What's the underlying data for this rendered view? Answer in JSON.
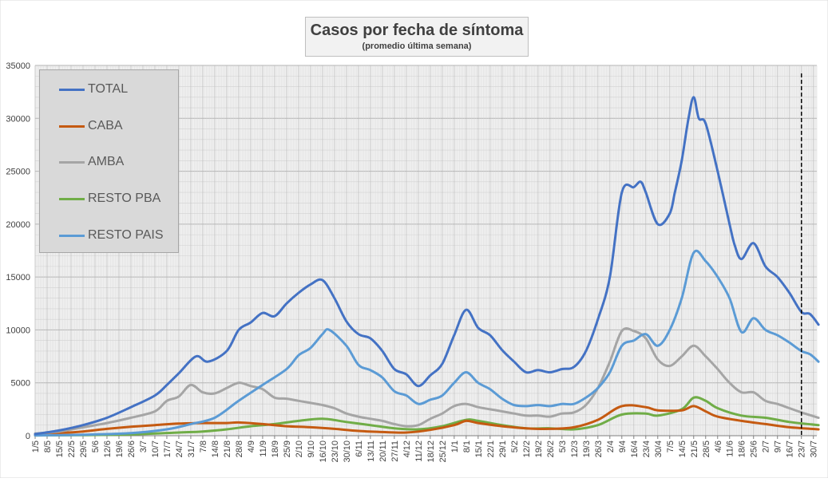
{
  "title": "Casos por fecha de síntoma",
  "subtitle": "(promedio última semana)",
  "chart_data": {
    "type": "line",
    "title": "Casos por fecha de síntoma",
    "subtitle": "(promedio última semana)",
    "xlabel": "",
    "ylabel": "",
    "ylim": [
      0,
      35000
    ],
    "yticks": [
      0,
      5000,
      10000,
      15000,
      20000,
      25000,
      30000,
      35000
    ],
    "grid": true,
    "legend_position": "top-left",
    "x_range": [
      "1/5/2020",
      "1/8/2021"
    ],
    "xtick_labels": [
      "1/5",
      "8/5",
      "15/5",
      "22/5",
      "29/5",
      "5/6",
      "12/6",
      "19/6",
      "26/6",
      "3/7",
      "10/7",
      "17/7",
      "24/7",
      "31/7",
      "7/8",
      "14/8",
      "21/8",
      "28/8",
      "4/9",
      "11/9",
      "18/9",
      "25/9",
      "2/10",
      "9/10",
      "16/10",
      "23/10",
      "30/10",
      "6/11",
      "13/11",
      "20/11",
      "27/11",
      "4/12",
      "11/12",
      "18/12",
      "25/12",
      "1/1",
      "8/1",
      "15/1",
      "22/1",
      "29/1",
      "5/2",
      "12/2",
      "19/2",
      "26/2",
      "5/3",
      "12/3",
      "19/3",
      "26/3",
      "2/4",
      "9/4",
      "16/4",
      "23/4",
      "30/4",
      "7/5",
      "14/5",
      "21/5",
      "28/5",
      "4/6",
      "11/6",
      "18/6",
      "25/6",
      "2/7",
      "9/7",
      "16/7",
      "23/7",
      "30/7"
    ],
    "vertical_marker": "23/7/2021",
    "series": [
      {
        "name": "TOTAL",
        "color": "#4472c4",
        "points": [
          [
            "1/5/2020",
            150
          ],
          [
            "15/5/2020",
            500
          ],
          [
            "29/5/2020",
            1000
          ],
          [
            "12/6/2020",
            1700
          ],
          [
            "26/6/2020",
            2700
          ],
          [
            "10/7/2020",
            3800
          ],
          [
            "17/7/2020",
            4800
          ],
          [
            "24/7/2020",
            5900
          ],
          [
            "3/8/2020",
            7500
          ],
          [
            "10/8/2020",
            7000
          ],
          [
            "21/8/2020",
            8000
          ],
          [
            "28/8/2020",
            10000
          ],
          [
            "4/9/2020",
            10700
          ],
          [
            "11/9/2020",
            11600
          ],
          [
            "18/9/2020",
            11300
          ],
          [
            "25/9/2020",
            12500
          ],
          [
            "2/10/2020",
            13500
          ],
          [
            "9/10/2020",
            14300
          ],
          [
            "16/10/2020",
            14700
          ],
          [
            "23/10/2020",
            13000
          ],
          [
            "30/10/2020",
            10800
          ],
          [
            "6/11/2020",
            9600
          ],
          [
            "13/11/2020",
            9200
          ],
          [
            "20/11/2020",
            8000
          ],
          [
            "27/11/2020",
            6300
          ],
          [
            "4/12/2020",
            5800
          ],
          [
            "11/12/2020",
            4700
          ],
          [
            "18/12/2020",
            5700
          ],
          [
            "25/12/2020",
            6800
          ],
          [
            "1/1/2021",
            9500
          ],
          [
            "8/1/2021",
            11900
          ],
          [
            "15/1/2021",
            10200
          ],
          [
            "22/1/2021",
            9500
          ],
          [
            "29/1/2021",
            8100
          ],
          [
            "5/2/2021",
            7000
          ],
          [
            "12/2/2021",
            6000
          ],
          [
            "19/2/2021",
            6200
          ],
          [
            "26/2/2021",
            6000
          ],
          [
            "5/3/2021",
            6300
          ],
          [
            "12/3/2021",
            6500
          ],
          [
            "19/3/2021",
            8000
          ],
          [
            "26/3/2021",
            11000
          ],
          [
            "2/4/2021",
            15000
          ],
          [
            "9/4/2021",
            23000
          ],
          [
            "16/4/2021",
            23500
          ],
          [
            "20/4/2021",
            24000
          ],
          [
            "23/4/2021",
            23000
          ],
          [
            "30/4/2021",
            20000
          ],
          [
            "7/5/2021",
            21000
          ],
          [
            "10/5/2021",
            23000
          ],
          [
            "14/5/2021",
            26000
          ],
          [
            "18/5/2021",
            30000
          ],
          [
            "21/5/2021",
            32000
          ],
          [
            "24/5/2021",
            30000
          ],
          [
            "28/5/2021",
            29500
          ],
          [
            "4/6/2021",
            25000
          ],
          [
            "11/6/2021",
            20000
          ],
          [
            "14/6/2021",
            18000
          ],
          [
            "18/6/2021",
            16700
          ],
          [
            "25/6/2021",
            18200
          ],
          [
            "2/7/2021",
            16000
          ],
          [
            "9/7/2021",
            15000
          ],
          [
            "16/7/2021",
            13500
          ],
          [
            "23/7/2021",
            11700
          ],
          [
            "28/7/2021",
            11500
          ],
          [
            "2/8/2021",
            10500
          ]
        ]
      },
      {
        "name": "CABA",
        "color": "#c55a11",
        "points": [
          [
            "1/5/2020",
            100
          ],
          [
            "15/5/2020",
            250
          ],
          [
            "29/5/2020",
            400
          ],
          [
            "12/6/2020",
            650
          ],
          [
            "26/6/2020",
            850
          ],
          [
            "10/7/2020",
            1000
          ],
          [
            "24/7/2020",
            1150
          ],
          [
            "7/8/2020",
            1200
          ],
          [
            "21/8/2020",
            1200
          ],
          [
            "28/8/2020",
            1250
          ],
          [
            "11/9/2020",
            1100
          ],
          [
            "25/9/2020",
            900
          ],
          [
            "9/10/2020",
            800
          ],
          [
            "23/10/2020",
            650
          ],
          [
            "6/11/2020",
            450
          ],
          [
            "20/11/2020",
            350
          ],
          [
            "4/12/2020",
            300
          ],
          [
            "18/12/2020",
            550
          ],
          [
            "1/1/2021",
            1000
          ],
          [
            "8/1/2021",
            1400
          ],
          [
            "15/1/2021",
            1200
          ],
          [
            "29/1/2021",
            900
          ],
          [
            "12/2/2021",
            700
          ],
          [
            "26/2/2021",
            650
          ],
          [
            "12/3/2021",
            800
          ],
          [
            "26/3/2021",
            1500
          ],
          [
            "9/4/2021",
            2800
          ],
          [
            "23/4/2021",
            2700
          ],
          [
            "30/4/2021",
            2400
          ],
          [
            "14/5/2021",
            2400
          ],
          [
            "21/5/2021",
            2800
          ],
          [
            "28/5/2021",
            2300
          ],
          [
            "4/6/2021",
            1800
          ],
          [
            "18/6/2021",
            1400
          ],
          [
            "2/7/2021",
            1100
          ],
          [
            "16/7/2021",
            800
          ],
          [
            "2/8/2021",
            600
          ]
        ]
      },
      {
        "name": "AMBA",
        "color": "#a5a5a5",
        "points": [
          [
            "1/5/2020",
            200
          ],
          [
            "15/5/2020",
            400
          ],
          [
            "29/5/2020",
            800
          ],
          [
            "12/6/2020",
            1200
          ],
          [
            "26/6/2020",
            1700
          ],
          [
            "10/7/2020",
            2300
          ],
          [
            "17/7/2020",
            3300
          ],
          [
            "24/7/2020",
            3700
          ],
          [
            "31/7/2020",
            4800
          ],
          [
            "7/8/2020",
            4100
          ],
          [
            "14/8/2020",
            4000
          ],
          [
            "21/8/2020",
            4500
          ],
          [
            "28/8/2020",
            5000
          ],
          [
            "4/9/2020",
            4700
          ],
          [
            "11/9/2020",
            4400
          ],
          [
            "18/9/2020",
            3600
          ],
          [
            "25/9/2020",
            3500
          ],
          [
            "2/10/2020",
            3300
          ],
          [
            "9/10/2020",
            3100
          ],
          [
            "16/10/2020",
            2900
          ],
          [
            "23/10/2020",
            2600
          ],
          [
            "30/10/2020",
            2100
          ],
          [
            "6/11/2020",
            1800
          ],
          [
            "13/11/2020",
            1600
          ],
          [
            "20/11/2020",
            1400
          ],
          [
            "27/11/2020",
            1100
          ],
          [
            "4/12/2020",
            900
          ],
          [
            "11/12/2020",
            1000
          ],
          [
            "18/12/2020",
            1600
          ],
          [
            "25/12/2020",
            2100
          ],
          [
            "1/1/2021",
            2800
          ],
          [
            "8/1/2021",
            3000
          ],
          [
            "15/1/2021",
            2700
          ],
          [
            "22/1/2021",
            2500
          ],
          [
            "29/1/2021",
            2300
          ],
          [
            "5/2/2021",
            2100
          ],
          [
            "12/2/2021",
            1900
          ],
          [
            "19/2/2021",
            1900
          ],
          [
            "26/2/2021",
            1800
          ],
          [
            "5/3/2021",
            2100
          ],
          [
            "12/3/2021",
            2200
          ],
          [
            "19/3/2021",
            2900
          ],
          [
            "26/3/2021",
            4500
          ],
          [
            "2/4/2021",
            7000
          ],
          [
            "9/4/2021",
            9900
          ],
          [
            "16/4/2021",
            9900
          ],
          [
            "23/4/2021",
            9200
          ],
          [
            "30/4/2021",
            7200
          ],
          [
            "7/5/2021",
            6600
          ],
          [
            "14/5/2021",
            7500
          ],
          [
            "21/5/2021",
            8500
          ],
          [
            "28/5/2021",
            7500
          ],
          [
            "4/6/2021",
            6300
          ],
          [
            "11/6/2021",
            5000
          ],
          [
            "18/6/2021",
            4100
          ],
          [
            "25/6/2021",
            4100
          ],
          [
            "2/7/2021",
            3300
          ],
          [
            "9/7/2021",
            3000
          ],
          [
            "16/7/2021",
            2600
          ],
          [
            "23/7/2021",
            2200
          ],
          [
            "2/8/2021",
            1700
          ]
        ]
      },
      {
        "name": "RESTO PBA",
        "color": "#70ad47",
        "points": [
          [
            "1/5/2020",
            30
          ],
          [
            "29/5/2020",
            60
          ],
          [
            "26/6/2020",
            120
          ],
          [
            "24/7/2020",
            300
          ],
          [
            "7/8/2020",
            400
          ],
          [
            "21/8/2020",
            600
          ],
          [
            "4/9/2020",
            900
          ],
          [
            "18/9/2020",
            1100
          ],
          [
            "2/10/2020",
            1400
          ],
          [
            "16/10/2020",
            1600
          ],
          [
            "30/10/2020",
            1300
          ],
          [
            "13/11/2020",
            1000
          ],
          [
            "27/11/2020",
            700
          ],
          [
            "11/12/2020",
            600
          ],
          [
            "25/12/2020",
            900
          ],
          [
            "8/1/2021",
            1500
          ],
          [
            "15/1/2021",
            1400
          ],
          [
            "29/1/2021",
            1000
          ],
          [
            "12/2/2021",
            700
          ],
          [
            "26/2/2021",
            700
          ],
          [
            "12/3/2021",
            600
          ],
          [
            "26/3/2021",
            1000
          ],
          [
            "9/4/2021",
            2000
          ],
          [
            "23/4/2021",
            2100
          ],
          [
            "30/4/2021",
            1900
          ],
          [
            "14/5/2021",
            2500
          ],
          [
            "21/5/2021",
            3600
          ],
          [
            "28/5/2021",
            3300
          ],
          [
            "4/6/2021",
            2600
          ],
          [
            "18/6/2021",
            1900
          ],
          [
            "2/7/2021",
            1700
          ],
          [
            "16/7/2021",
            1300
          ],
          [
            "2/8/2021",
            1000
          ]
        ]
      },
      {
        "name": "RESTO PAIS",
        "color": "#5b9bd5",
        "points": [
          [
            "1/5/2020",
            30
          ],
          [
            "29/5/2020",
            100
          ],
          [
            "26/6/2020",
            250
          ],
          [
            "17/7/2020",
            600
          ],
          [
            "31/7/2020",
            1100
          ],
          [
            "14/8/2020",
            1700
          ],
          [
            "28/8/2020",
            3300
          ],
          [
            "11/9/2020",
            4800
          ],
          [
            "25/9/2020",
            6300
          ],
          [
            "2/10/2020",
            7600
          ],
          [
            "9/10/2020",
            8300
          ],
          [
            "16/10/2020",
            9600
          ],
          [
            "20/10/2020",
            10000
          ],
          [
            "30/10/2020",
            8500
          ],
          [
            "6/11/2020",
            6700
          ],
          [
            "13/11/2020",
            6200
          ],
          [
            "20/11/2020",
            5500
          ],
          [
            "27/11/2020",
            4200
          ],
          [
            "4/12/2020",
            3800
          ],
          [
            "11/12/2020",
            3000
          ],
          [
            "18/12/2020",
            3400
          ],
          [
            "25/12/2020",
            3800
          ],
          [
            "1/1/2021",
            5000
          ],
          [
            "8/1/2021",
            6000
          ],
          [
            "15/1/2021",
            5000
          ],
          [
            "22/1/2021",
            4400
          ],
          [
            "29/1/2021",
            3500
          ],
          [
            "5/2/2021",
            2900
          ],
          [
            "12/2/2021",
            2800
          ],
          [
            "19/2/2021",
            2900
          ],
          [
            "26/2/2021",
            2800
          ],
          [
            "5/3/2021",
            3000
          ],
          [
            "12/3/2021",
            3000
          ],
          [
            "19/3/2021",
            3600
          ],
          [
            "26/3/2021",
            4500
          ],
          [
            "2/4/2021",
            6000
          ],
          [
            "9/4/2021",
            8500
          ],
          [
            "16/4/2021",
            9000
          ],
          [
            "23/4/2021",
            9600
          ],
          [
            "30/4/2021",
            8500
          ],
          [
            "7/5/2021",
            10000
          ],
          [
            "14/5/2021",
            13000
          ],
          [
            "21/5/2021",
            17300
          ],
          [
            "28/5/2021",
            16500
          ],
          [
            "4/6/2021",
            15000
          ],
          [
            "11/6/2021",
            13000
          ],
          [
            "18/6/2021",
            9800
          ],
          [
            "25/6/2021",
            11100
          ],
          [
            "2/7/2021",
            10000
          ],
          [
            "9/7/2021",
            9500
          ],
          [
            "16/7/2021",
            8800
          ],
          [
            "23/7/2021",
            8000
          ],
          [
            "28/7/2021",
            7700
          ],
          [
            "2/8/2021",
            7000
          ]
        ]
      }
    ]
  }
}
